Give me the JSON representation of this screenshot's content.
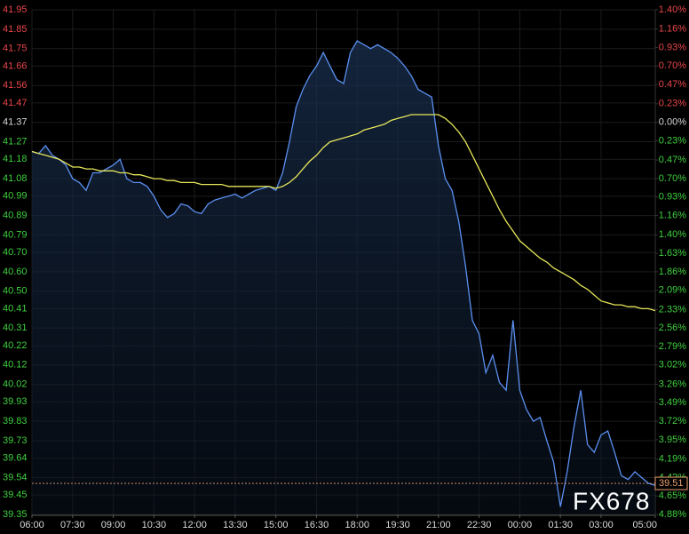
{
  "chart_data": {
    "type": "line",
    "xlim": [
      0,
      92
    ],
    "xticks": [
      {
        "value": 0,
        "label": "06:00"
      },
      {
        "value": 6,
        "label": "07:30"
      },
      {
        "value": 12,
        "label": "09:00"
      },
      {
        "value": 18,
        "label": "10:30"
      },
      {
        "value": 24,
        "label": "12:00"
      },
      {
        "value": 30,
        "label": "13:30"
      },
      {
        "value": 36,
        "label": "15:00"
      },
      {
        "value": 42,
        "label": "16:30"
      },
      {
        "value": 48,
        "label": "18:00"
      },
      {
        "value": 54,
        "label": "19:30"
      },
      {
        "value": 60,
        "label": "21:00"
      },
      {
        "value": 66,
        "label": "22:30"
      },
      {
        "value": 72,
        "label": "00:00"
      },
      {
        "value": 78,
        "label": "01:30"
      },
      {
        "value": 84,
        "label": "03:00"
      },
      {
        "value": 92,
        "label": "05:00"
      }
    ],
    "ylim": [
      39.35,
      41.95
    ],
    "yticks": [
      41.95,
      41.85,
      41.75,
      41.66,
      41.56,
      41.47,
      41.37,
      41.27,
      41.18,
      41.08,
      40.99,
      40.89,
      40.79,
      {
        "value": 40.7,
        "label": "40.70"
      },
      {
        "value": 40.6,
        "label": "40.60"
      },
      {
        "value": 40.5,
        "label": "40.50"
      },
      40.41,
      40.31,
      40.22,
      40.12,
      40.02,
      39.93,
      39.83,
      39.73,
      39.64,
      39.54,
      39.45,
      39.35
    ],
    "y2lim": [
      -4.88,
      1.4
    ],
    "y2ticks": [
      {
        "value": 1.4,
        "label": "1.40%"
      },
      {
        "value": 1.16,
        "label": "1.16%"
      },
      {
        "value": 0.93,
        "label": "0.93%"
      },
      {
        "value": 0.7,
        "label": "0.70%"
      },
      {
        "value": 0.47,
        "label": "0.47%"
      },
      {
        "value": 0.23,
        "label": "0.23%"
      },
      {
        "value": 0,
        "label": "0.00%"
      },
      {
        "value": -0.23,
        "label": "0.23%"
      },
      {
        "value": -0.47,
        "label": "0.47%"
      },
      {
        "value": -0.7,
        "label": "0.70%"
      },
      {
        "value": -0.93,
        "label": "0.93%"
      },
      {
        "value": -1.16,
        "label": "1.16%"
      },
      {
        "value": -1.4,
        "label": "1.40%"
      },
      {
        "value": -1.63,
        "label": "1.63%"
      },
      {
        "value": -1.86,
        "label": "1.86%"
      },
      {
        "value": -2.09,
        "label": "2.09%"
      },
      {
        "value": -2.33,
        "label": "2.33%"
      },
      {
        "value": -2.56,
        "label": "2.56%"
      },
      {
        "value": -2.79,
        "label": "2.79%"
      },
      {
        "value": -3.02,
        "label": "3.02%"
      },
      {
        "value": -3.26,
        "label": "3.26%"
      },
      {
        "value": -3.49,
        "label": "3.49%"
      },
      {
        "value": -3.72,
        "label": "3.72%"
      },
      {
        "value": -3.95,
        "label": "3.95%"
      },
      {
        "value": -4.19,
        "label": "4.19%"
      },
      {
        "value": -4.42,
        "label": "4.42%"
      },
      {
        "value": -4.65,
        "label": "4.65%"
      },
      {
        "value": -4.88,
        "label": "4.88%"
      }
    ],
    "up_color": "#e8464a",
    "down_color": "#3fd03f",
    "flat_color": "#d8d8d8",
    "grid": true,
    "series": [
      {
        "color": "#5b8ff0",
        "fill": true,
        "values": [
          41.22,
          41.21,
          41.25,
          41.2,
          41.18,
          41.15,
          41.08,
          41.06,
          41.02,
          41.11,
          41.11,
          41.13,
          41.15,
          41.18,
          41.08,
          41.06,
          41.06,
          41.04,
          40.99,
          40.92,
          40.88,
          40.9,
          40.95,
          40.94,
          40.91,
          40.9,
          40.95,
          40.97,
          40.98,
          40.99,
          41.0,
          40.98,
          41.0,
          41.02,
          41.03,
          41.04,
          41.02,
          41.11,
          41.27,
          41.45,
          41.54,
          41.61,
          41.66,
          41.73,
          41.66,
          41.59,
          41.57,
          41.73,
          41.79,
          41.77,
          41.75,
          41.77,
          41.75,
          41.73,
          41.7,
          41.66,
          41.61,
          41.54,
          41.52,
          41.5,
          41.25,
          41.08,
          41.02,
          40.86,
          40.63,
          40.35,
          40.28,
          40.08,
          40.17,
          40.03,
          39.99,
          40.35,
          39.99,
          39.89,
          39.83,
          39.85,
          39.73,
          39.62,
          39.39,
          39.57,
          39.8,
          39.99,
          39.71,
          39.67,
          39.76,
          39.78,
          39.67,
          39.55,
          39.53,
          39.57,
          39.54,
          39.51,
          39.5
        ]
      },
      {
        "color": "#e6e65a",
        "fill": false,
        "values": [
          41.22,
          41.21,
          41.2,
          41.19,
          41.18,
          41.16,
          41.14,
          41.14,
          41.13,
          41.13,
          41.12,
          41.12,
          41.12,
          41.11,
          41.11,
          41.1,
          41.1,
          41.09,
          41.08,
          41.08,
          41.07,
          41.07,
          41.06,
          41.06,
          41.06,
          41.05,
          41.05,
          41.05,
          41.05,
          41.04,
          41.04,
          41.04,
          41.04,
          41.04,
          41.04,
          41.04,
          41.03,
          41.04,
          41.06,
          41.09,
          41.13,
          41.17,
          41.2,
          41.24,
          41.27,
          41.28,
          41.29,
          41.3,
          41.31,
          41.33,
          41.34,
          41.35,
          41.36,
          41.38,
          41.39,
          41.4,
          41.41,
          41.41,
          41.41,
          41.41,
          41.41,
          41.39,
          41.36,
          41.32,
          41.27,
          41.2,
          41.13,
          41.06,
          40.99,
          40.92,
          40.86,
          40.81,
          40.76,
          40.73,
          40.7,
          40.67,
          40.65,
          40.62,
          40.6,
          40.58,
          40.56,
          40.53,
          40.51,
          40.48,
          40.45,
          40.44,
          40.43,
          40.43,
          40.42,
          40.42,
          40.41,
          40.41,
          40.4
        ]
      }
    ],
    "last_price": 39.51,
    "last_price_color": "#e8a070",
    "watermark": "FX678"
  }
}
